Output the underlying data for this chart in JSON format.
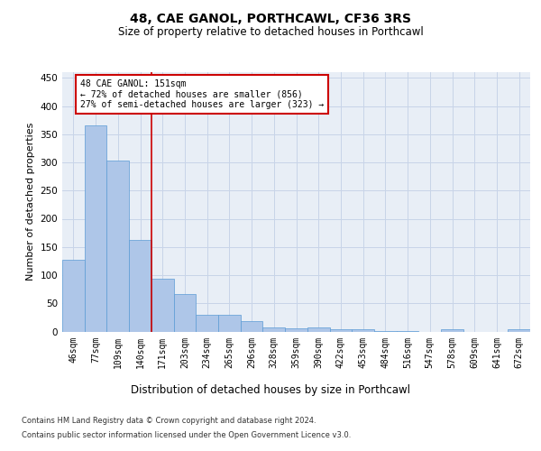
{
  "title": "48, CAE GANOL, PORTHCAWL, CF36 3RS",
  "subtitle": "Size of property relative to detached houses in Porthcawl",
  "xlabel": "Distribution of detached houses by size in Porthcawl",
  "ylabel": "Number of detached properties",
  "categories": [
    "46sqm",
    "77sqm",
    "109sqm",
    "140sqm",
    "171sqm",
    "203sqm",
    "234sqm",
    "265sqm",
    "296sqm",
    "328sqm",
    "359sqm",
    "390sqm",
    "422sqm",
    "453sqm",
    "484sqm",
    "516sqm",
    "547sqm",
    "578sqm",
    "609sqm",
    "641sqm",
    "672sqm"
  ],
  "values": [
    127,
    365,
    304,
    163,
    93,
    67,
    30,
    30,
    18,
    8,
    6,
    8,
    4,
    4,
    1,
    1,
    0,
    4,
    0,
    0,
    4
  ],
  "bar_color": "#aec6e8",
  "bar_edge_color": "#5b9bd5",
  "grid_color": "#c8d4e8",
  "background_color": "#e8eef6",
  "vline_x": 3.5,
  "vline_color": "#cc0000",
  "annotation_text": "48 CAE GANOL: 151sqm\n← 72% of detached houses are smaller (856)\n27% of semi-detached houses are larger (323) →",
  "annotation_box_color": "#ffffff",
  "annotation_box_edge": "#cc0000",
  "footer_line1": "Contains HM Land Registry data © Crown copyright and database right 2024.",
  "footer_line2": "Contains public sector information licensed under the Open Government Licence v3.0.",
  "ylim": [
    0,
    460
  ],
  "yticks": [
    0,
    50,
    100,
    150,
    200,
    250,
    300,
    350,
    400,
    450
  ]
}
